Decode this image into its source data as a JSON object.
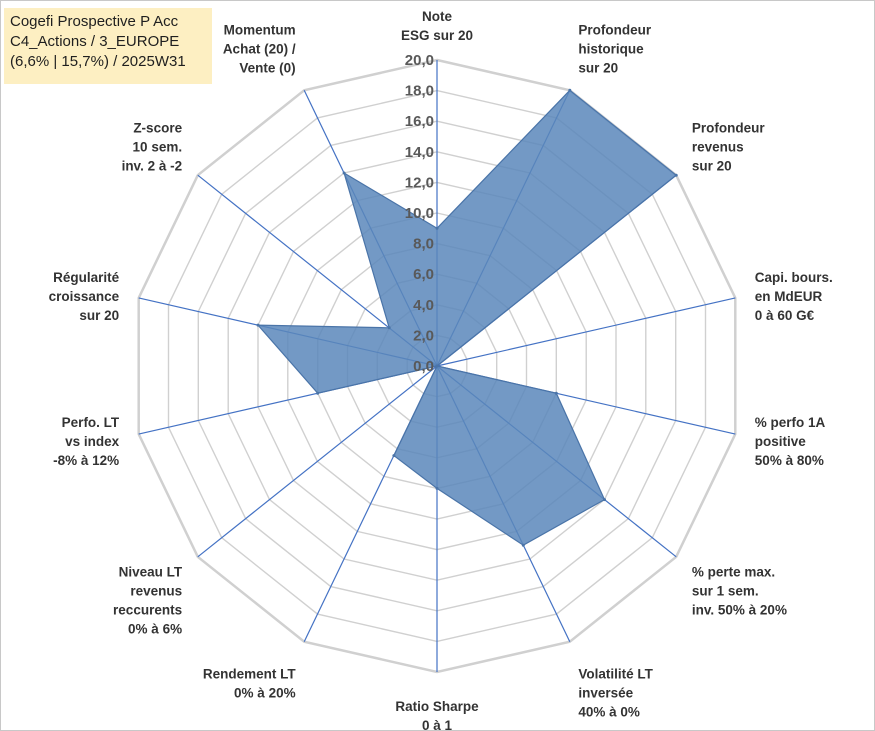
{
  "header": {
    "title_lines": [
      "Cogefi Prospective P Acc",
      "C4_Actions / 3_EUROPE",
      "(6,6% | 15,7%) / 2025W31"
    ]
  },
  "chart_data": {
    "type": "radar",
    "axes": [
      [
        "Note",
        "ESG sur 20"
      ],
      [
        "Profondeur",
        "historique",
        "sur 20"
      ],
      [
        "Profondeur",
        "revenus",
        "sur 20"
      ],
      [
        "Capi. bours.",
        "en MdEUR",
        "0 à 60 G€"
      ],
      [
        "% perfo 1A",
        "positive",
        "50% à 80%"
      ],
      [
        "% perte max.",
        "sur 1 sem.",
        "inv. 50% à 20%"
      ],
      [
        "Volatilité LT",
        "inversée",
        "40% à 0%"
      ],
      [
        "Ratio Sharpe",
        "0 à 1"
      ],
      [
        "Rendement LT",
        "0% à 20%"
      ],
      [
        "Niveau LT",
        "revenus",
        "reccurents",
        "0% à 6%"
      ],
      [
        "Perfo. LT",
        "vs index",
        "-8% à 12%"
      ],
      [
        "Régularité",
        "croissance",
        "sur 20"
      ],
      [
        "Z-score",
        "10 sem.",
        "inv. 2 à -2"
      ],
      [
        "Momentum",
        "Achat (20) /",
        "Vente (0)"
      ]
    ],
    "values": [
      9.0,
      20.0,
      20.0,
      0.0,
      8.0,
      14.0,
      13.0,
      8.0,
      6.5,
      0.0,
      8.0,
      12.0,
      4.0,
      14.0
    ],
    "rmin": 0,
    "rmax": 20,
    "ticks": [
      "0,0",
      "2,0",
      "4,0",
      "6,0",
      "8,0",
      "10,0",
      "12,0",
      "14,0",
      "16,0",
      "18,0",
      "20,0"
    ],
    "colors": {
      "fill": "#5b87bb",
      "stroke": "#4a74a8",
      "grid": "#d0d0d0",
      "spoke": "#4472c4"
    }
  }
}
